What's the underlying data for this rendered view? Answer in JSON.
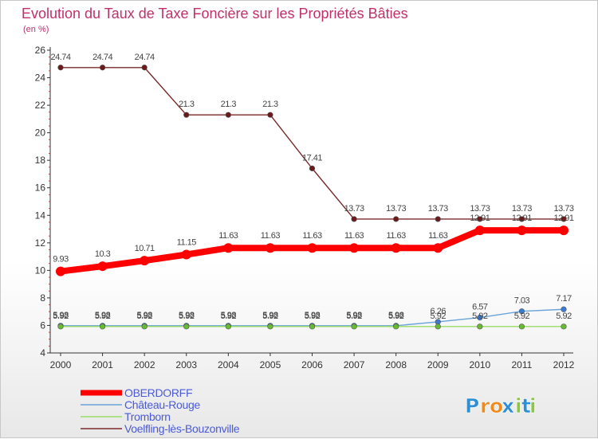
{
  "chart_data": {
    "type": "line",
    "title": "Evolution du Taux de Taxe Foncière sur les Propriétés Bâties",
    "subtitle": "(en %)",
    "x": [
      "2000",
      "2001",
      "2002",
      "2003",
      "2004",
      "2005",
      "2006",
      "2007",
      "2008",
      "2009",
      "2010",
      "2011",
      "2012"
    ],
    "ylim": [
      4,
      26
    ],
    "yticks": [
      "4",
      "6",
      "8",
      "10",
      "12",
      "14",
      "16",
      "18",
      "20",
      "22",
      "24",
      "26"
    ],
    "grid": false,
    "legend_position": "bottom-left",
    "series": [
      {
        "name": "OBERDORFF",
        "color": "#ff0000",
        "marker_color": "#ff0000",
        "values": [
          9.93,
          10.3,
          10.71,
          11.15,
          11.63,
          11.63,
          11.63,
          11.63,
          11.63,
          11.63,
          12.91,
          12.91,
          12.91
        ],
        "labels": [
          "9.93",
          "10.3",
          "10.71",
          "11.15",
          "11.63",
          "11.63",
          "11.63",
          "11.63",
          "11.63",
          "11.63",
          "12.91",
          "12.91",
          "12.91"
        ]
      },
      {
        "name": "Château-Rouge",
        "color": "#6aa3d9",
        "marker_color": "#3a7ad0",
        "values": [
          5.98,
          5.98,
          5.98,
          5.98,
          5.98,
          5.98,
          5.98,
          5.98,
          5.98,
          6.26,
          6.57,
          7.03,
          7.17
        ],
        "labels": [
          "5.98",
          "5.98",
          "5.98",
          "5.98",
          "5.98",
          "5.98",
          "5.98",
          "5.98",
          "5.98",
          "6.26",
          "6.57",
          "7.03",
          "7.17"
        ]
      },
      {
        "name": "Tromborn",
        "color": "#99dd66",
        "marker_color": "#66bb33",
        "values": [
          5.92,
          5.92,
          5.92,
          5.92,
          5.92,
          5.92,
          5.92,
          5.92,
          5.92,
          5.92,
          5.92,
          5.92,
          5.92
        ],
        "labels": [
          "5.92",
          "5.92",
          "5.92",
          "5.92",
          "5.92",
          "5.92",
          "5.92",
          "5.92",
          "5.92",
          "5.92",
          "5.92",
          "5.92",
          "5.92"
        ]
      },
      {
        "name": "Voelfling-lès-Bouzonville",
        "color": "#7a2a2a",
        "marker_color": "#6a1a1a",
        "values": [
          24.74,
          24.74,
          24.74,
          21.3,
          21.3,
          21.3,
          17.41,
          13.73,
          13.73,
          13.73,
          13.73,
          13.73,
          13.73
        ],
        "labels": [
          "24.74",
          "24.74",
          "24.74",
          "21.3",
          "21.3",
          "21.3",
          "17.41",
          "13.73",
          "13.73",
          "13.73",
          "13.73",
          "13.73",
          "13.73"
        ]
      }
    ]
  },
  "logo": {
    "text": "Proxiti",
    "letters": [
      "P",
      "r",
      "o",
      "x",
      "i",
      "t",
      "i"
    ],
    "colors": [
      "#2e8fd6",
      "#f08a1c",
      "#f08a1c",
      "#2e8fd6",
      "#8cc63f",
      "#2e8fd6",
      "#8cc63f"
    ]
  }
}
